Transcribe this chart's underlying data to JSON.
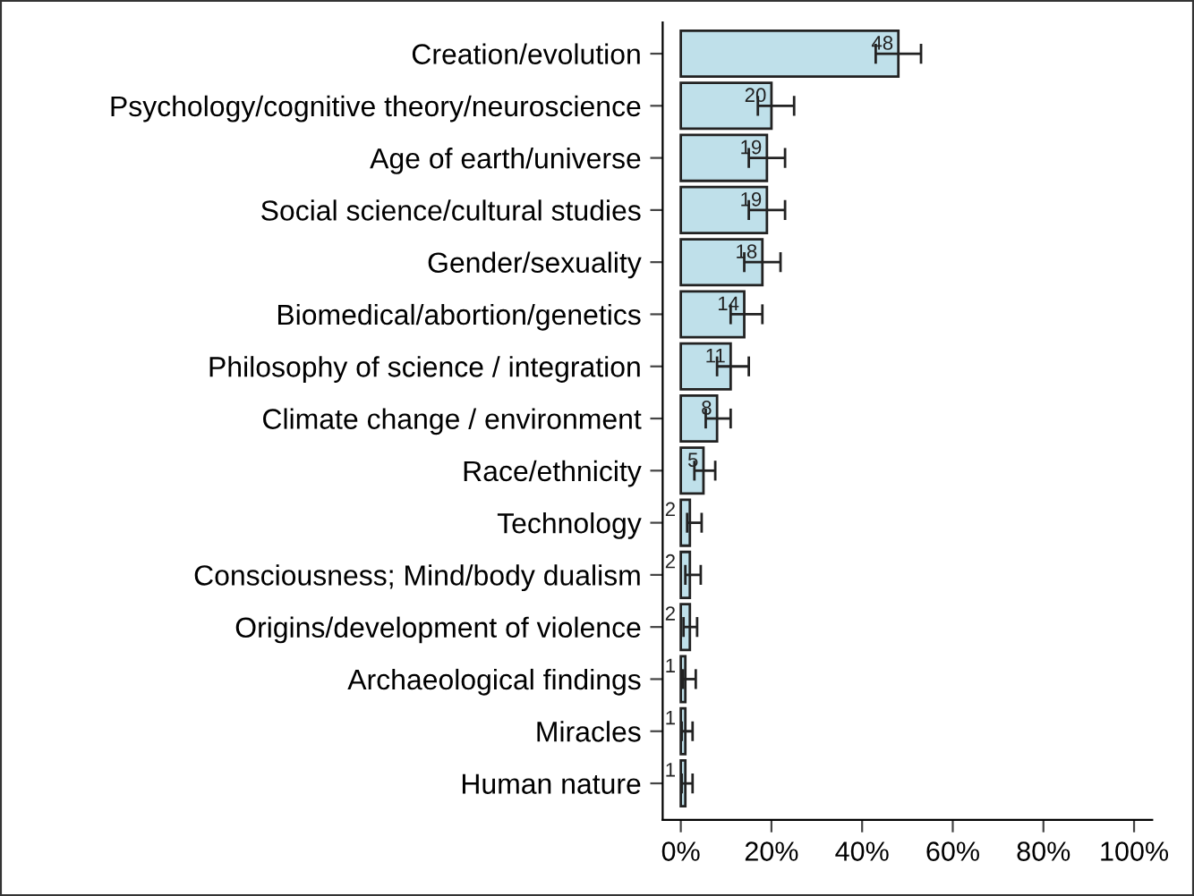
{
  "chart_data": {
    "type": "bar",
    "orientation": "horizontal",
    "categories": [
      "Creation/evolution",
      "Psychology/cognitive theory/neuroscience",
      "Age of earth/universe",
      "Social science/cultural studies",
      "Gender/sexuality",
      "Biomedical/abortion/genetics",
      "Philosophy of science / integration",
      "Climate change / environment",
      "Race/ethnicity",
      "Technology",
      "Consciousness; Mind/body dualism",
      "Origins/development of violence",
      "Archaeological findings",
      "Miracles",
      "Human nature"
    ],
    "values": [
      48,
      20,
      19,
      19,
      18,
      14,
      11,
      8,
      5,
      2,
      2,
      2,
      1,
      1,
      1
    ],
    "errors": [
      [
        43,
        53
      ],
      [
        17,
        25
      ],
      [
        15,
        23
      ],
      [
        15,
        23
      ],
      [
        14,
        22
      ],
      [
        11,
        18
      ],
      [
        8,
        15
      ],
      [
        5.5,
        11
      ],
      [
        3,
        7.6
      ],
      [
        1.4,
        4.6
      ],
      [
        1,
        4.4
      ],
      [
        0.6,
        3.6
      ],
      [
        0.5,
        3.3
      ],
      [
        0.2,
        2.6
      ],
      [
        0.2,
        2.6
      ]
    ],
    "color": "#bfe0ea",
    "data_labels": true,
    "xlim": [
      -4,
      104
    ],
    "xticks": [
      {
        "value": 0,
        "label": "0%"
      },
      {
        "value": 20,
        "label": "20%"
      },
      {
        "value": 40,
        "label": "40%"
      },
      {
        "value": 60,
        "label": "60%"
      },
      {
        "value": 80,
        "label": "80%"
      },
      {
        "value": 100,
        "label": "100%"
      }
    ],
    "grid": false,
    "legend": false
  }
}
